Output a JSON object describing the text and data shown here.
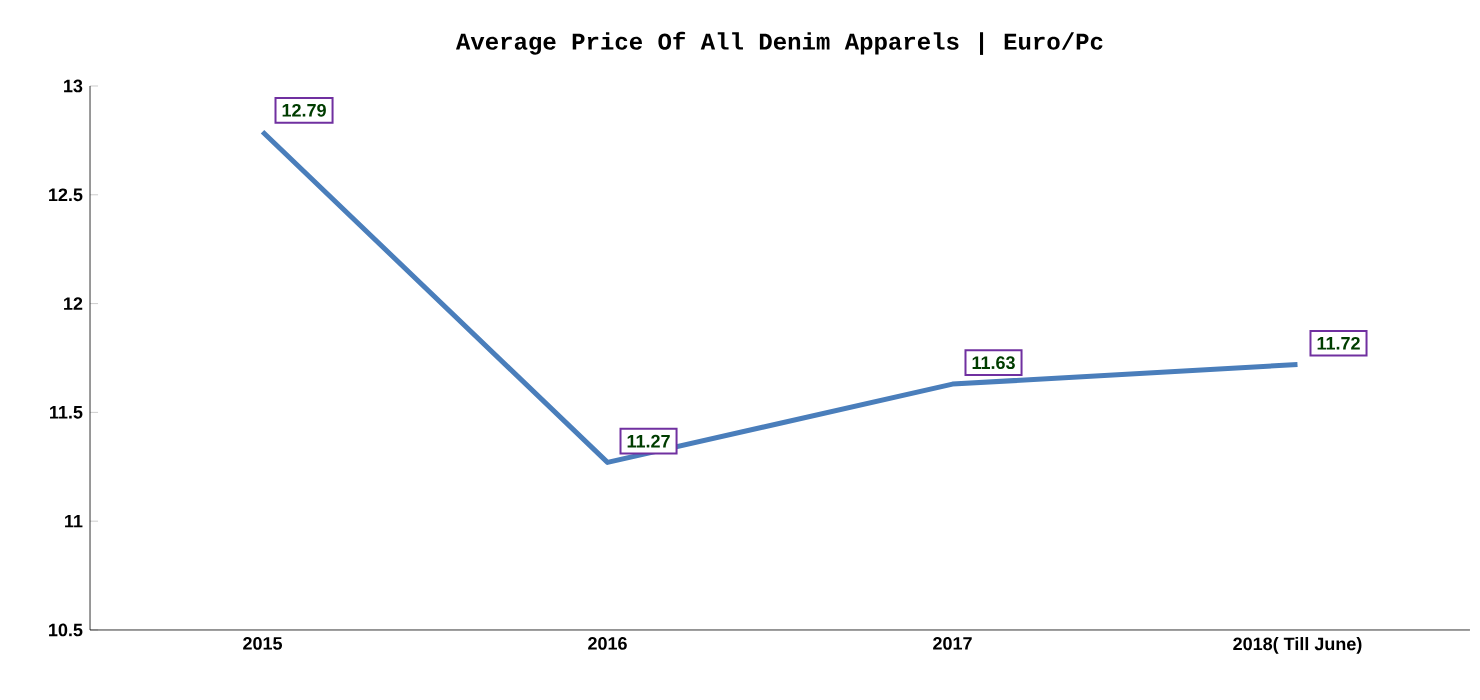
{
  "chart_data": {
    "type": "line",
    "title": "Average Price Of All Denim Apparels | Euro/Pc",
    "categories": [
      "2015",
      "2016",
      "2017",
      "2018( Till June)"
    ],
    "values": [
      12.79,
      11.27,
      11.63,
      11.72
    ],
    "color": "#4a7ebb",
    "ylim": [
      10.5,
      13
    ],
    "yticks": [
      10.5,
      11,
      11.5,
      12,
      12.5,
      13
    ],
    "grid": false,
    "data_labels": true,
    "line_style": "solid"
  }
}
